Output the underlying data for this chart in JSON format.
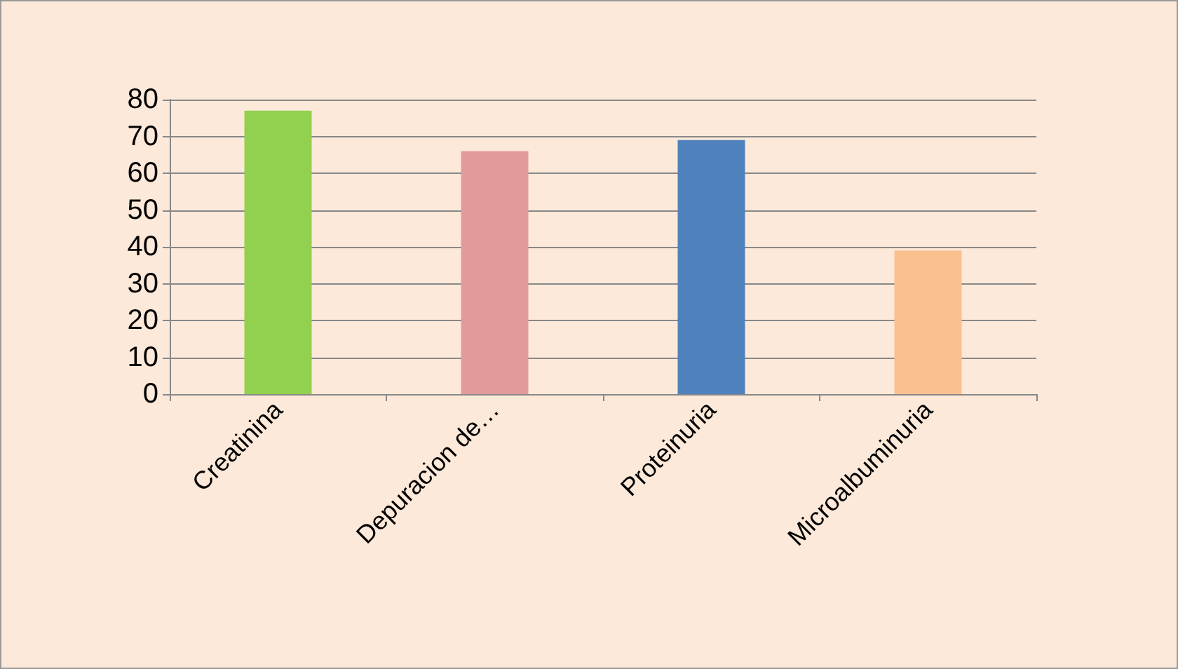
{
  "chart_data": {
    "type": "bar",
    "categories": [
      "Creatinina",
      "Depuracion de…",
      "Proteinuria",
      "Microalbuminuria"
    ],
    "values": [
      77,
      66,
      69,
      39
    ],
    "colors": [
      "#92d050",
      "#e39a9a",
      "#4f81bd",
      "#fac08f"
    ],
    "ylim": [
      0,
      80
    ],
    "yticks": [
      0,
      10,
      20,
      30,
      40,
      50,
      60,
      70,
      80
    ],
    "grid": "y"
  }
}
